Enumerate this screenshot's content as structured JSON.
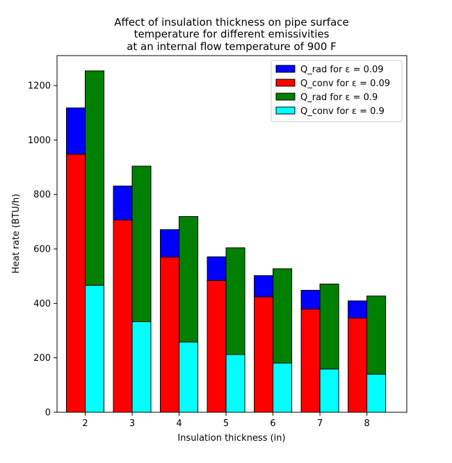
{
  "chart_data": {
    "type": "bar",
    "title_lines": [
      "Affect of insulation thickness on pipe surface",
      "temperature for different emissivities",
      "at an internal flow temperature of 900 F"
    ],
    "xlabel": "Insulation thickness (in)",
    "ylabel": "Heat rate (BTU/h)",
    "categories": [
      "2",
      "3",
      "4",
      "5",
      "6",
      "7",
      "8"
    ],
    "ylim": [
      0,
      1310
    ],
    "yticks": [
      0,
      200,
      400,
      600,
      800,
      1000,
      1200
    ],
    "stacked_groups": [
      {
        "group": "ε = 0.09",
        "position": "left",
        "bottom": {
          "name": "Q_conv for ε = 0.09",
          "color": "#ff0000",
          "values": [
            948,
            706,
            570,
            484,
            424,
            379,
            346
          ]
        },
        "top": {
          "name": "Q_rad for ε = 0.09",
          "color": "#0000ff",
          "values": [
            170,
            125,
            101,
            87,
            78,
            69,
            63
          ]
        }
      },
      {
        "group": "ε = 0.9",
        "position": "right",
        "bottom": {
          "name": "Q_conv for ε = 0.9",
          "color": "#00ffff",
          "values": [
            466,
            333,
            258,
            212,
            181,
            159,
            140
          ]
        },
        "top": {
          "name": "Q_rad for ε = 0.9",
          "color": "#008000",
          "values": [
            788,
            571,
            461,
            392,
            346,
            312,
            287
          ]
        }
      }
    ],
    "legend": {
      "placement": "top-right",
      "entries": [
        {
          "label": "Q_rad for ε = 0.09",
          "color": "#0000ff"
        },
        {
          "label": "Q_conv for ε = 0.09",
          "color": "#ff0000"
        },
        {
          "label": "Q_rad for ε = 0.9",
          "color": "#008000"
        },
        {
          "label": "Q_conv for ε = 0.9",
          "color": "#00ffff"
        }
      ]
    },
    "grid": false
  }
}
